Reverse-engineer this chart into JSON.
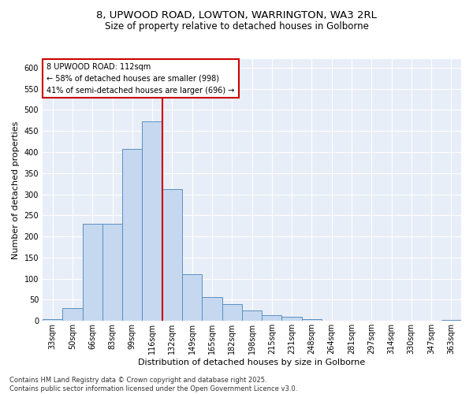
{
  "title1": "8, UPWOOD ROAD, LOWTON, WARRINGTON, WA3 2RL",
  "title2": "Size of property relative to detached houses in Golborne",
  "xlabel": "Distribution of detached houses by size in Golborne",
  "ylabel": "Number of detached properties",
  "footnote": "Contains HM Land Registry data © Crown copyright and database right 2025.\nContains public sector information licensed under the Open Government Licence v3.0.",
  "bins": [
    "33sqm",
    "50sqm",
    "66sqm",
    "83sqm",
    "99sqm",
    "116sqm",
    "132sqm",
    "149sqm",
    "165sqm",
    "182sqm",
    "198sqm",
    "215sqm",
    "231sqm",
    "248sqm",
    "264sqm",
    "281sqm",
    "297sqm",
    "314sqm",
    "330sqm",
    "347sqm",
    "363sqm"
  ],
  "values": [
    5,
    30,
    230,
    230,
    407,
    472,
    312,
    110,
    57,
    40,
    25,
    13,
    10,
    5,
    0,
    0,
    0,
    0,
    0,
    0,
    2
  ],
  "bar_color": "#c5d8f0",
  "bar_edge_color": "#5a8fc2",
  "red_line_x": 5.5,
  "annotation_title": "8 UPWOOD ROAD: 112sqm",
  "annotation_line1": "← 58% of detached houses are smaller (998)",
  "annotation_line2": "41% of semi-detached houses are larger (696) →",
  "annotation_box_color": "#ffffff",
  "annotation_edge_color": "#cc0000",
  "red_line_color": "#cc0000",
  "background_color": "#e8eef7",
  "ylim": [
    0,
    620
  ],
  "yticks": [
    0,
    50,
    100,
    150,
    200,
    250,
    300,
    350,
    400,
    450,
    500,
    550,
    600
  ],
  "title1_fontsize": 9.5,
  "title2_fontsize": 8.5,
  "xlabel_fontsize": 8,
  "ylabel_fontsize": 8,
  "tick_fontsize": 7,
  "footnote_fontsize": 6,
  "annotation_fontsize": 7
}
